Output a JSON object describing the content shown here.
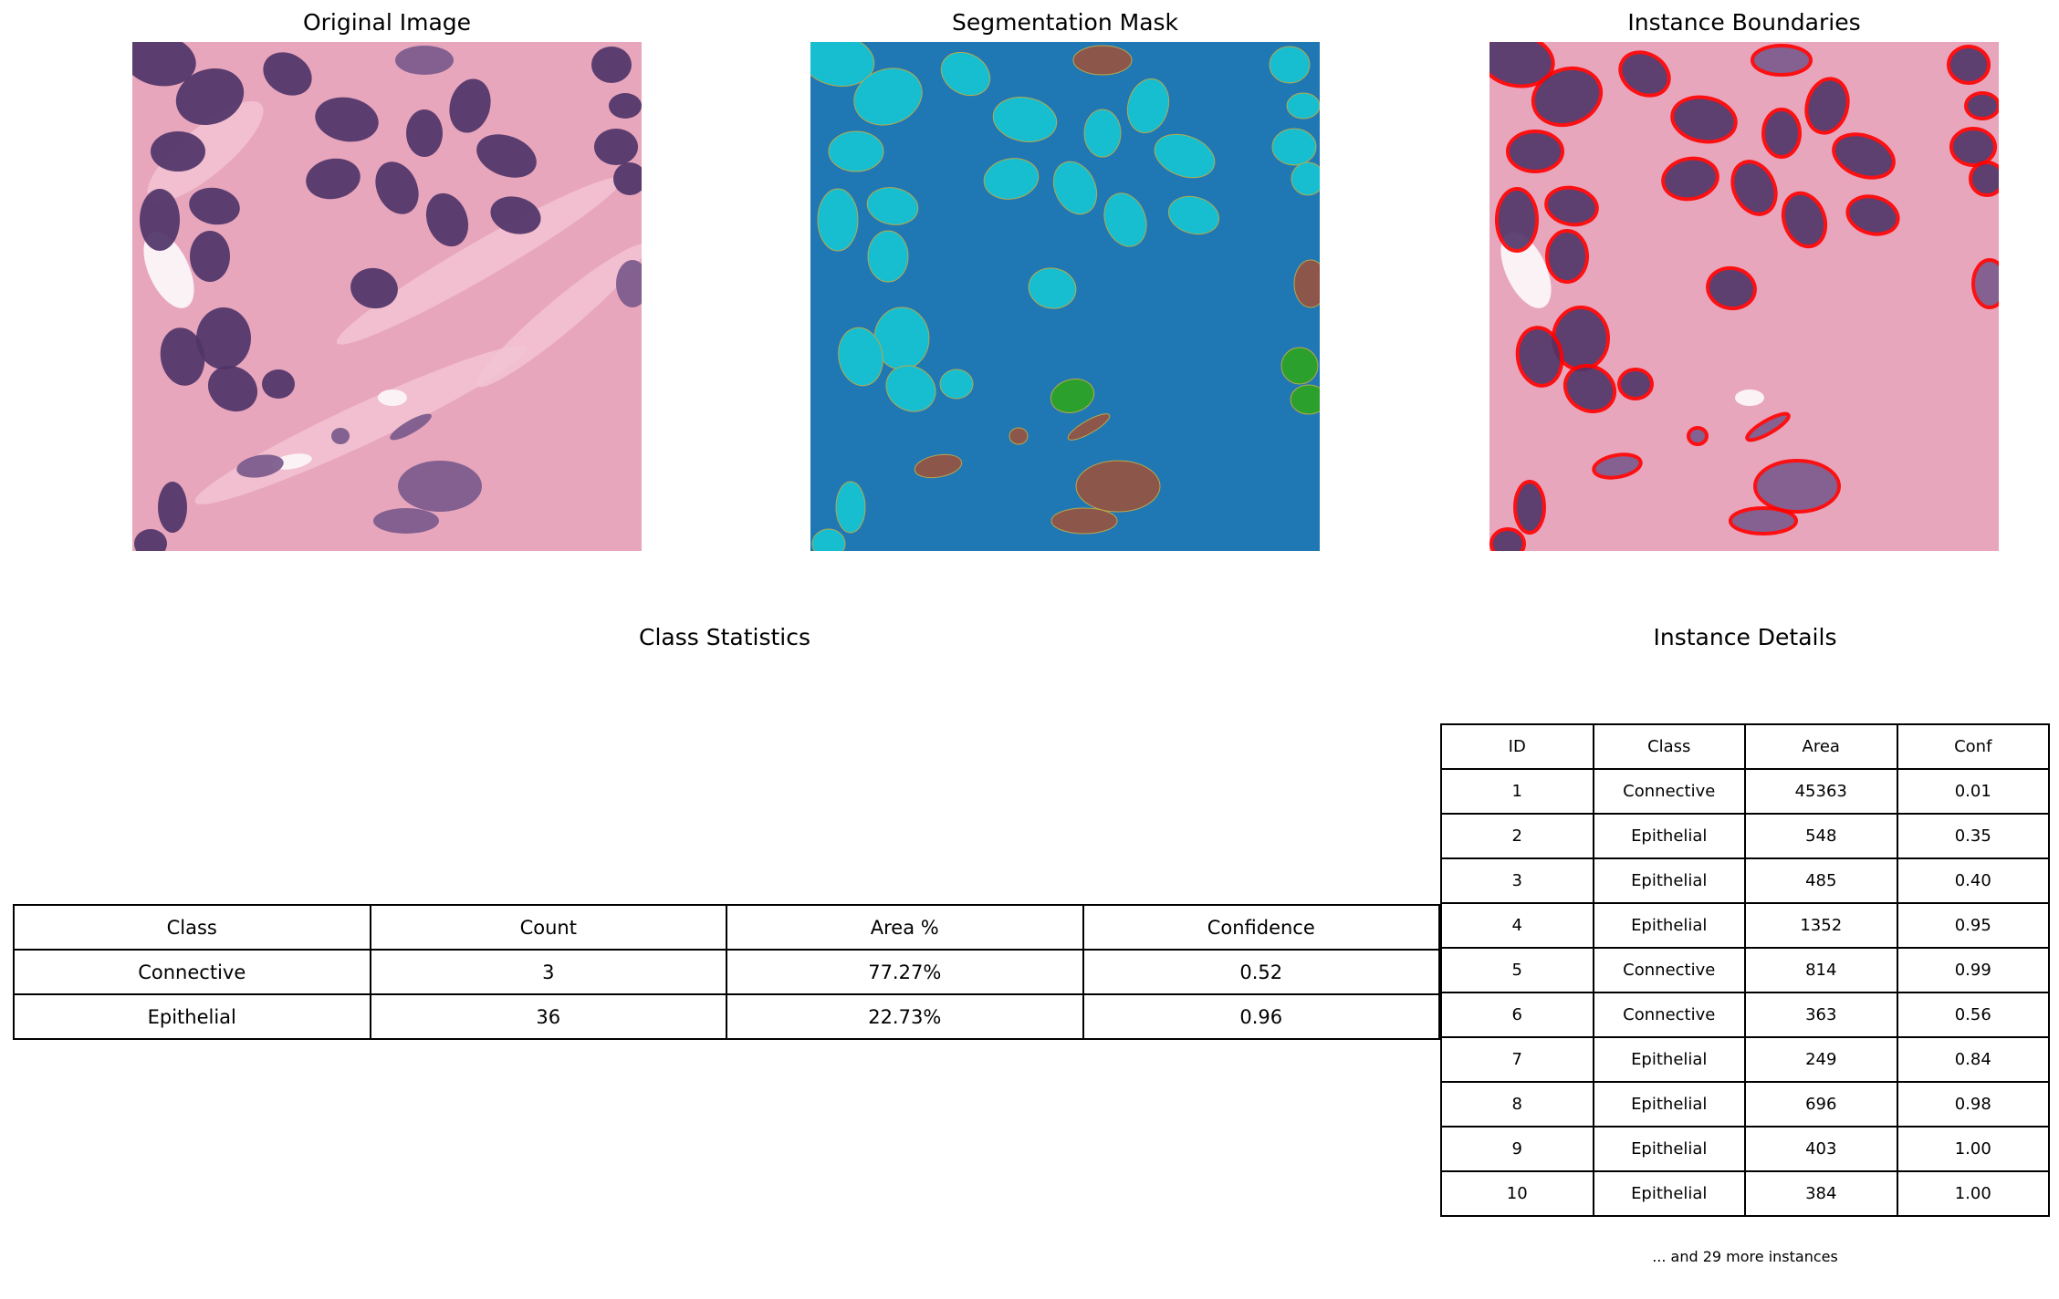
{
  "panels": {
    "original_title": "Original Image",
    "mask_title": "Segmentation Mask",
    "boundaries_title": "Instance Boundaries"
  },
  "class_statistics": {
    "title": "Class Statistics",
    "headers": [
      "Class",
      "Count",
      "Area %",
      "Confidence"
    ],
    "rows": [
      [
        "Connective",
        "3",
        "77.27%",
        "0.52"
      ],
      [
        "Epithelial",
        "36",
        "22.73%",
        "0.96"
      ]
    ]
  },
  "instance_details": {
    "title": "Instance Details",
    "headers": [
      "ID",
      "Class",
      "Area",
      "Conf"
    ],
    "rows": [
      [
        "1",
        "Connective",
        "45363",
        "0.01"
      ],
      [
        "2",
        "Epithelial",
        "548",
        "0.35"
      ],
      [
        "3",
        "Epithelial",
        "485",
        "0.40"
      ],
      [
        "4",
        "Epithelial",
        "1352",
        "0.95"
      ],
      [
        "5",
        "Connective",
        "814",
        "0.99"
      ],
      [
        "6",
        "Connective",
        "363",
        "0.56"
      ],
      [
        "7",
        "Epithelial",
        "249",
        "0.84"
      ],
      [
        "8",
        "Epithelial",
        "696",
        "0.98"
      ],
      [
        "9",
        "Epithelial",
        "403",
        "1.00"
      ],
      [
        "10",
        "Epithelial",
        "384",
        "1.00"
      ]
    ],
    "footnote": "... and 29 more instances"
  },
  "colors": {
    "tissue_pink": "#e8a6bc",
    "nucleus_purple": "#4f3468",
    "mask_background": "#1f77b4",
    "mask_epithelial": "#17becf",
    "mask_connective": "#8c564b",
    "mask_other": "#2ca02c",
    "boundary": "#ff0000"
  }
}
